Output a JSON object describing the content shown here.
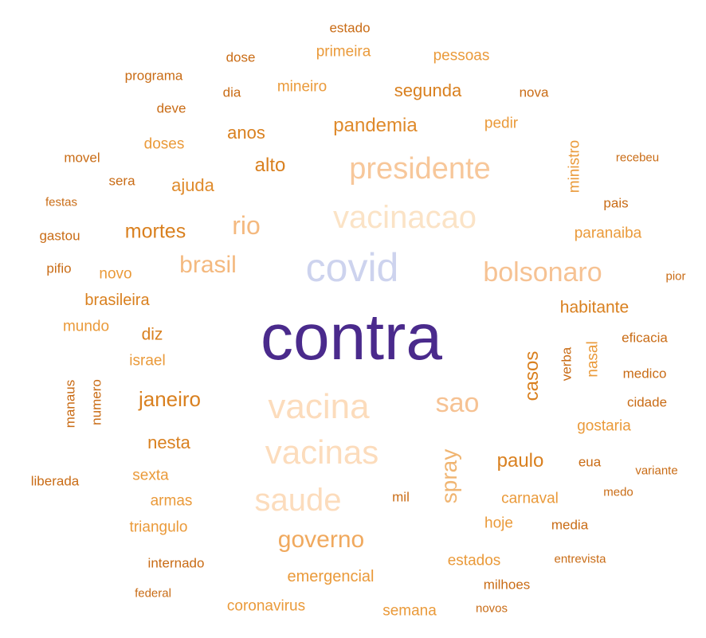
{
  "colors": {
    "deep_purple": "#4a2a8c",
    "lavender": "#cdd3ee",
    "pale_peach": "#fbd6b4",
    "light_orange": "#f7b874",
    "orange": "#ea9a3a",
    "dark_orange": "#d9801f",
    "brown_orange": "#c96c16"
  },
  "words": [
    {
      "text": "contra",
      "weight": 100,
      "color": "#4a2a8c"
    },
    {
      "text": "covid",
      "weight": 55,
      "color": "#cdd3ee"
    },
    {
      "text": "vacinacao",
      "weight": 45,
      "color": "#fbe3c6"
    },
    {
      "text": "vacina",
      "weight": 48,
      "color": "#fcdcbc"
    },
    {
      "text": "vacinas",
      "weight": 46,
      "color": "#fcdcbc"
    },
    {
      "text": "saude",
      "weight": 46,
      "color": "#fcdcbc"
    },
    {
      "text": "presidente",
      "weight": 42,
      "color": "#f7c79a"
    },
    {
      "text": "bolsonaro",
      "weight": 38,
      "color": "#f6c293"
    },
    {
      "text": "sao",
      "weight": 36,
      "color": "#f6c293"
    },
    {
      "text": "rio",
      "weight": 32,
      "color": "#f4b97f"
    },
    {
      "text": "brasil",
      "weight": 30,
      "color": "#f4b97f"
    },
    {
      "text": "governo",
      "weight": 30,
      "color": "#f0a95e"
    },
    {
      "text": "spray",
      "weight": 28,
      "color": "#f0b572"
    },
    {
      "text": "pandemia",
      "weight": 24,
      "color": "#df8a2b"
    },
    {
      "text": "janeiro",
      "weight": 24,
      "color": "#d9801f"
    },
    {
      "text": "mortes",
      "weight": 24,
      "color": "#d9801f"
    },
    {
      "text": "casos",
      "weight": 22,
      "color": "#d9801f"
    },
    {
      "text": "alto",
      "weight": 24,
      "color": "#d9801f"
    },
    {
      "text": "paulo",
      "weight": 22,
      "color": "#d9801f"
    },
    {
      "text": "ajuda",
      "weight": 22,
      "color": "#df8a2b"
    },
    {
      "text": "anos",
      "weight": 22,
      "color": "#d9801f"
    },
    {
      "text": "segunda",
      "weight": 22,
      "color": "#d9801f"
    },
    {
      "text": "nesta",
      "weight": 22,
      "color": "#d9801f"
    },
    {
      "text": "habitante",
      "weight": 20,
      "color": "#d9801f"
    },
    {
      "text": "brasileira",
      "weight": 20,
      "color": "#d9801f"
    },
    {
      "text": "diz",
      "weight": 20,
      "color": "#d9801f"
    },
    {
      "text": "emergencial",
      "weight": 20,
      "color": "#ea9a3a"
    },
    {
      "text": "paranaiba",
      "weight": 18,
      "color": "#ea9a3a"
    },
    {
      "text": "gostaria",
      "weight": 18,
      "color": "#ea9a3a"
    },
    {
      "text": "carnaval",
      "weight": 18,
      "color": "#ea9a3a"
    },
    {
      "text": "estados",
      "weight": 18,
      "color": "#ea9a3a"
    },
    {
      "text": "primeira",
      "weight": 18,
      "color": "#ea9a3a"
    },
    {
      "text": "pessoas",
      "weight": 18,
      "color": "#ea9a3a"
    },
    {
      "text": "mineiro",
      "weight": 18,
      "color": "#ea9a3a"
    },
    {
      "text": "pedir",
      "weight": 18,
      "color": "#ea9a3a"
    },
    {
      "text": "doses",
      "weight": 18,
      "color": "#ea9a3a"
    },
    {
      "text": "ministro",
      "weight": 18,
      "color": "#ea9a3a"
    },
    {
      "text": "nasal",
      "weight": 18,
      "color": "#ea9a3a"
    },
    {
      "text": "novo",
      "weight": 18,
      "color": "#ea9a3a"
    },
    {
      "text": "mundo",
      "weight": 18,
      "color": "#ea9a3a"
    },
    {
      "text": "israel",
      "weight": 18,
      "color": "#ea9a3a"
    },
    {
      "text": "sexta",
      "weight": 18,
      "color": "#ea9a3a"
    },
    {
      "text": "armas",
      "weight": 18,
      "color": "#ea9a3a"
    },
    {
      "text": "triangulo",
      "weight": 18,
      "color": "#ea9a3a"
    },
    {
      "text": "hoje",
      "weight": 18,
      "color": "#ea9a3a"
    },
    {
      "text": "semana",
      "weight": 18,
      "color": "#ea9a3a"
    },
    {
      "text": "coronavirus",
      "weight": 18,
      "color": "#ea9a3a"
    },
    {
      "text": "mil",
      "weight": 16,
      "color": "#c96c16"
    },
    {
      "text": "dose",
      "weight": 16,
      "color": "#c96c16"
    },
    {
      "text": "estado",
      "weight": 16,
      "color": "#c96c16"
    },
    {
      "text": "programa",
      "weight": 16,
      "color": "#c96c16"
    },
    {
      "text": "dia",
      "weight": 16,
      "color": "#c96c16"
    },
    {
      "text": "nova",
      "weight": 16,
      "color": "#c96c16"
    },
    {
      "text": "deve",
      "weight": 16,
      "color": "#c96c16"
    },
    {
      "text": "movel",
      "weight": 16,
      "color": "#c96c16"
    },
    {
      "text": "sera",
      "weight": 16,
      "color": "#c96c16"
    },
    {
      "text": "recebeu",
      "weight": 14,
      "color": "#c96c16"
    },
    {
      "text": "pais",
      "weight": 16,
      "color": "#c96c16"
    },
    {
      "text": "festas",
      "weight": 14,
      "color": "#c96c16"
    },
    {
      "text": "gastou",
      "weight": 16,
      "color": "#c96c16"
    },
    {
      "text": "pifio",
      "weight": 16,
      "color": "#c96c16"
    },
    {
      "text": "pior",
      "weight": 14,
      "color": "#c96c16"
    },
    {
      "text": "eficacia",
      "weight": 16,
      "color": "#c96c16"
    },
    {
      "text": "verba",
      "weight": 16,
      "color": "#c96c16"
    },
    {
      "text": "medico",
      "weight": 16,
      "color": "#c96c16"
    },
    {
      "text": "cidade",
      "weight": 16,
      "color": "#c96c16"
    },
    {
      "text": "manaus",
      "weight": 16,
      "color": "#c96c16"
    },
    {
      "text": "numero",
      "weight": 16,
      "color": "#c96c16"
    },
    {
      "text": "eua",
      "weight": 16,
      "color": "#c96c16"
    },
    {
      "text": "variante",
      "weight": 14,
      "color": "#c96c16"
    },
    {
      "text": "medo",
      "weight": 14,
      "color": "#c96c16"
    },
    {
      "text": "liberada",
      "weight": 16,
      "color": "#c96c16"
    },
    {
      "text": "media",
      "weight": 16,
      "color": "#c96c16"
    },
    {
      "text": "entrevista",
      "weight": 14,
      "color": "#c96c16"
    },
    {
      "text": "internado",
      "weight": 16,
      "color": "#c96c16"
    },
    {
      "text": "milhoes",
      "weight": 16,
      "color": "#c96c16"
    },
    {
      "text": "federal",
      "weight": 14,
      "color": "#c96c16"
    },
    {
      "text": "novos",
      "weight": 14,
      "color": "#c96c16"
    }
  ]
}
